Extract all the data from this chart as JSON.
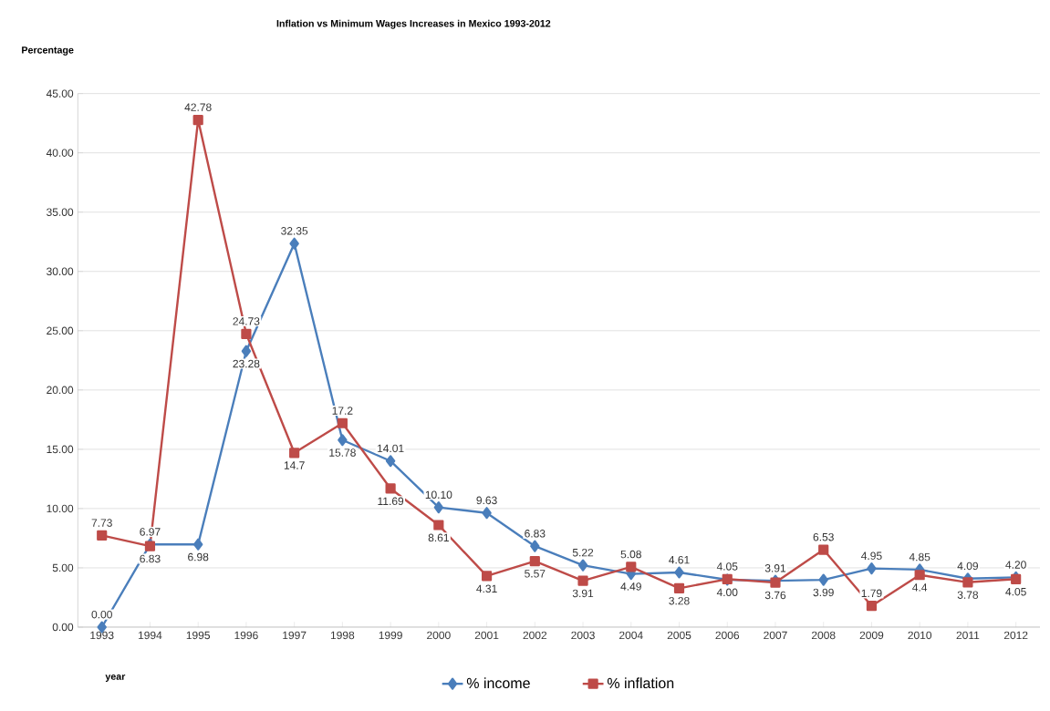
{
  "chart_data": {
    "type": "line",
    "title": "Inflation vs Minimum Wages Increases in Mexico 1993-2012",
    "xlabel": "year",
    "ylabel": "Percentage",
    "categories": [
      "1993",
      "1994",
      "1995",
      "1996",
      "1997",
      "1998",
      "1999",
      "2000",
      "2001",
      "2002",
      "2003",
      "2004",
      "2005",
      "2006",
      "2007",
      "2008",
      "2009",
      "2010",
      "2011",
      "2012"
    ],
    "series": [
      {
        "name": "% income",
        "color": "#4a7ebb",
        "marker": "diamond",
        "values": [
          0.0,
          6.97,
          6.98,
          23.28,
          32.35,
          15.78,
          14.01,
          10.1,
          9.63,
          6.83,
          5.22,
          4.49,
          4.61,
          4.0,
          3.91,
          3.99,
          4.95,
          4.85,
          4.09,
          4.2
        ],
        "value_labels": [
          "0.00",
          "6.97",
          "6.98",
          "23.28",
          "32.35",
          "15.78",
          "14.01",
          "10.10",
          "9.63",
          "6.83",
          "5.22",
          "4.49",
          "4.61",
          "4.00",
          "3.91",
          "3.99",
          "4.95",
          "4.85",
          "4.09",
          "4.20"
        ]
      },
      {
        "name": "% inflation",
        "color": "#be4b48",
        "marker": "square",
        "values": [
          7.73,
          6.83,
          42.78,
          24.73,
          14.7,
          17.2,
          11.69,
          8.61,
          4.31,
          5.57,
          3.91,
          5.08,
          3.28,
          4.05,
          3.76,
          6.53,
          1.79,
          4.4,
          3.78,
          4.05
        ],
        "value_labels": [
          "7.73",
          "6.83",
          "42.78",
          "24.73",
          "14.7",
          "17.2",
          "11.69",
          "8.61",
          "4.31",
          "5.57",
          "3.91",
          "5.08",
          "3.28",
          "4.05",
          "3.76",
          "6.53",
          "1.79",
          "4.4",
          "3.78",
          "4.05"
        ]
      }
    ],
    "ylim": [
      0,
      45
    ],
    "yticks": [
      {
        "value": 0,
        "label": "0.00"
      },
      {
        "value": 5,
        "label": "5.00"
      },
      {
        "value": 10,
        "label": "10.00"
      },
      {
        "value": 15,
        "label": "15.00"
      },
      {
        "value": 20,
        "label": "20.00"
      },
      {
        "value": 25,
        "label": "25.00"
      },
      {
        "value": 30,
        "label": "30.00"
      },
      {
        "value": 35,
        "label": "35.00"
      },
      {
        "value": 40,
        "label": "40.00"
      },
      {
        "value": 45,
        "label": "45.00"
      }
    ],
    "grid": "y",
    "legend": "bottom",
    "line_style": "solid"
  }
}
